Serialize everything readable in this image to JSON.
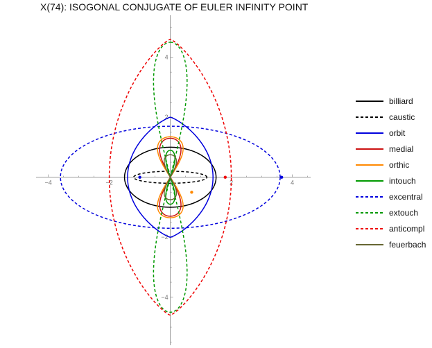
{
  "chart_data": {
    "type": "line",
    "title": "X(74): ISOGONAL CONJUGATE OF EULER INFINITY POINT",
    "xlabel": "",
    "ylabel": "",
    "xlim": [
      -4.4,
      4.6
    ],
    "ylim": [
      -5.6,
      5.4
    ],
    "grid": false,
    "legend_position": "right",
    "x_ticks": [
      -4,
      -2,
      2,
      4
    ],
    "y_ticks": [
      -4,
      -2,
      2,
      4
    ],
    "series": [
      {
        "name": "billiard",
        "color": "#000000",
        "dash": "solid",
        "shape": "ellipse",
        "a": 1.5,
        "b": 1.0
      },
      {
        "name": "caustic",
        "color": "#000000",
        "dash": "dashed",
        "shape": "ellipse",
        "a": 1.2,
        "b": 0.2
      },
      {
        "name": "orbit",
        "color": "#0000dd",
        "dash": "solid",
        "shape": "lens",
        "a": 1.4,
        "b": 2.0
      },
      {
        "name": "medial",
        "color": "#cc1111",
        "dash": "solid",
        "shape": "figure8",
        "a": 0.35,
        "b": 1.3
      },
      {
        "name": "orthic",
        "color": "#ff8800",
        "dash": "solid",
        "shape": "figure8",
        "a": 0.42,
        "b": 1.35
      },
      {
        "name": "intouch",
        "color": "#009900",
        "dash": "solid",
        "shape": "figure8",
        "a": 0.15,
        "b": 0.9
      },
      {
        "name": "excentral",
        "color": "#0000dd",
        "dash": "dashed",
        "shape": "ellipse",
        "a": 3.6,
        "b": 1.7
      },
      {
        "name": "extouch",
        "color": "#009900",
        "dash": "dashed",
        "shape": "figure8",
        "a": 0.55,
        "b": 4.5
      },
      {
        "name": "anticompl",
        "color": "#ee0000",
        "dash": "dashed",
        "shape": "lens",
        "a": 2.0,
        "b": 4.6
      },
      {
        "name": "feuerbach",
        "color": "#666633",
        "dash": "solid",
        "shape": "figure8",
        "a": 0.2,
        "b": 0.75
      }
    ],
    "markers": [
      {
        "x": -1.0,
        "y": 0,
        "color": "#0000dd"
      },
      {
        "x": 1.8,
        "y": 0,
        "color": "#ee0000"
      },
      {
        "x": 3.65,
        "y": 0,
        "color": "#0000dd"
      },
      {
        "x": 0.7,
        "y": -0.5,
        "color": "#ff8800"
      }
    ]
  }
}
